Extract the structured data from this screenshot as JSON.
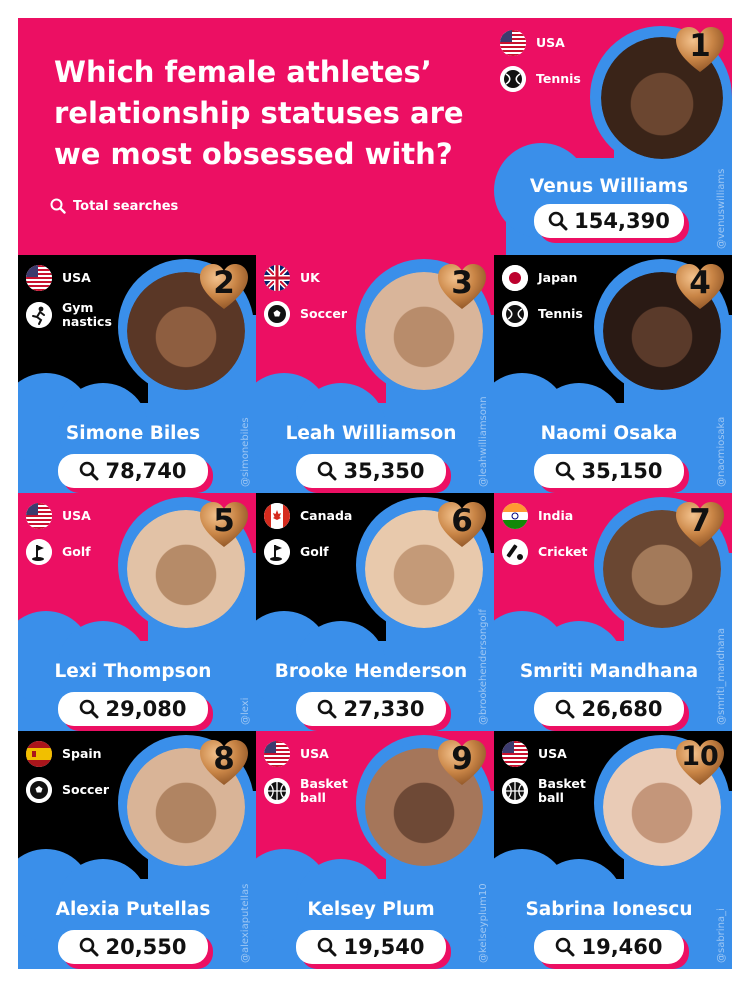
{
  "title": "Which female athletes’ relationship statuses are we most obsessed with?",
  "legend_label": "Total searches",
  "colors": {
    "pink": "#ec0f63",
    "blue": "#3a8fea",
    "black": "#000000",
    "gold": "#c88745"
  },
  "athletes": [
    {
      "rank": "1",
      "name": "Venus Williams",
      "searches": "154,390",
      "country": "USA",
      "sport": "Tennis",
      "handle": "@venuswilliams"
    },
    {
      "rank": "2",
      "name": "Simone Biles",
      "searches": "78,740",
      "country": "USA",
      "sport": "Gym\nnastics",
      "handle": "@simonebiles"
    },
    {
      "rank": "3",
      "name": "Leah Williamson",
      "searches": "35,350",
      "country": "UK",
      "sport": "Soccer",
      "handle": "@leahwilliamsonn"
    },
    {
      "rank": "4",
      "name": "Naomi Osaka",
      "searches": "35,150",
      "country": "Japan",
      "sport": "Tennis",
      "handle": "@naomiosaka"
    },
    {
      "rank": "5",
      "name": "Lexi Thompson",
      "searches": "29,080",
      "country": "USA",
      "sport": "Golf",
      "handle": "@lexi"
    },
    {
      "rank": "6",
      "name": "Brooke Henderson",
      "searches": "27,330",
      "country": "Canada",
      "sport": "Golf",
      "handle": "@brookehendersongolf"
    },
    {
      "rank": "7",
      "name": "Smriti Mandhana",
      "searches": "26,680",
      "country": "India",
      "sport": "Cricket",
      "handle": "@smriti_mandhana"
    },
    {
      "rank": "8",
      "name": "Alexia Putellas",
      "searches": "20,550",
      "country": "Spain",
      "sport": "Soccer",
      "handle": "@alexiaputellas"
    },
    {
      "rank": "9",
      "name": "Kelsey Plum",
      "searches": "19,540",
      "country": "USA",
      "sport": "Basket\nball",
      "handle": "@kelseyplum10"
    },
    {
      "rank": "10",
      "name": "Sabrina Ionescu",
      "searches": "19,460",
      "country": "USA",
      "sport": "Basket\nball",
      "handle": "@sabrina_i"
    }
  ],
  "icons": {
    "search": "search-icon",
    "flags": [
      "usa-flag-icon",
      "usa-flag-icon",
      "uk-flag-icon",
      "japan-flag-icon",
      "usa-flag-icon",
      "canada-flag-icon",
      "india-flag-icon",
      "spain-flag-icon",
      "usa-flag-icon",
      "usa-flag-icon"
    ],
    "sports": [
      "tennis-icon",
      "gymnastics-icon",
      "soccer-icon",
      "tennis-icon",
      "golf-icon",
      "golf-icon",
      "cricket-icon",
      "soccer-icon",
      "basketball-icon",
      "basketball-icon"
    ]
  }
}
